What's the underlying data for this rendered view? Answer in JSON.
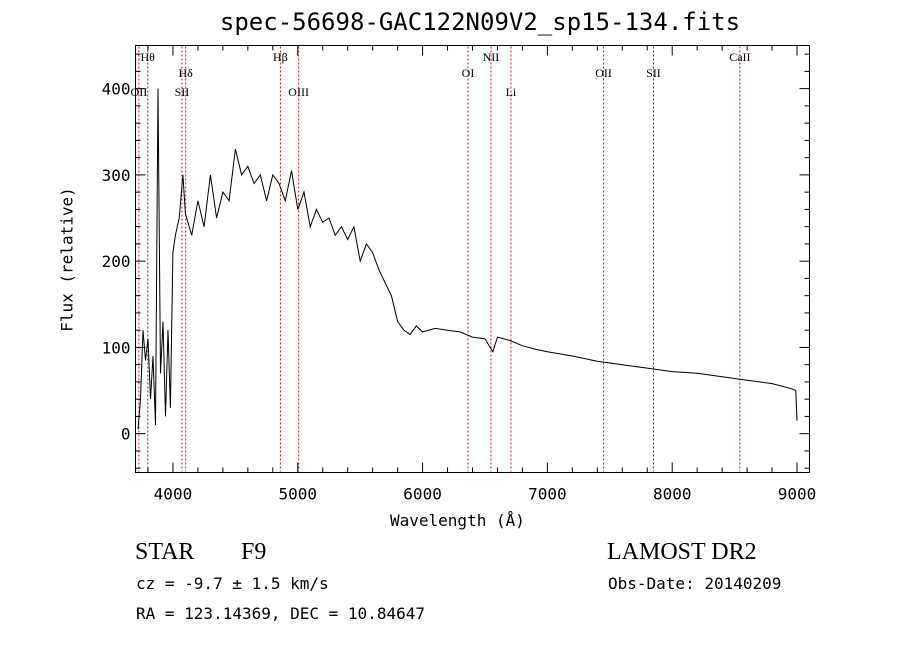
{
  "title": "spec-56698-GAC122N09V2_sp15-134.fits",
  "footer": {
    "class": "STAR",
    "subclass": "F9",
    "cz": "cz = -9.7 ± 1.5 km/s",
    "radec": "RA = 123.14369, DEC =  10.84647",
    "survey": "LAMOST DR2",
    "obsdate": "Obs-Date: 20140209"
  },
  "chart_data": {
    "type": "line",
    "title": "spec-56698-GAC122N09V2_sp15-134.fits",
    "xlabel": "Wavelength (Å)",
    "ylabel": "Flux (relative)",
    "xlim": [
      3700,
      9100
    ],
    "ylim": [
      -45,
      450
    ],
    "x_ticks": [
      4000,
      5000,
      6000,
      7000,
      8000,
      9000
    ],
    "y_ticks": [
      0,
      100,
      200,
      300,
      400
    ],
    "grid": false,
    "line_color": "#000000",
    "marker_color": "#b22222",
    "lines": [
      {
        "label": "Hθ",
        "x": 3798,
        "row": "top"
      },
      {
        "label": "OII",
        "x": 3727,
        "row": "bottom"
      },
      {
        "label": "Hδ",
        "x": 4102,
        "row": "middle"
      },
      {
        "label": "SII",
        "x": 4072,
        "row": "bottom"
      },
      {
        "label": "Hβ",
        "x": 4861,
        "row": "top"
      },
      {
        "label": "OIII",
        "x": 5007,
        "row": "bottom"
      },
      {
        "label": "OI",
        "x": 6364,
        "row": "middle"
      },
      {
        "label": "NII",
        "x": 6548,
        "row": "top"
      },
      {
        "label": "Li",
        "x": 6708,
        "row": "bottom"
      },
      {
        "label": "OII",
        "x": 7450,
        "row": "middle"
      },
      {
        "label": "SII",
        "x": 7850,
        "row": "middle"
      },
      {
        "label": "CaII",
        "x": 8542,
        "row": "top"
      }
    ],
    "series": [
      {
        "x": [
          3720,
          3740,
          3760,
          3780,
          3800,
          3820,
          3840,
          3860,
          3880,
          3900,
          3920,
          3940,
          3960,
          3980,
          4000,
          4020,
          4050,
          4080,
          4100,
          4150,
          4200,
          4250,
          4300,
          4350,
          4400,
          4450,
          4500,
          4550,
          4600,
          4650,
          4700,
          4750,
          4800,
          4850,
          4900,
          4950,
          5000,
          5050,
          5100,
          5150,
          5200,
          5250,
          5300,
          5350,
          5400,
          5450,
          5500,
          5550,
          5600,
          5650,
          5700,
          5750,
          5800,
          5850,
          5900,
          5950,
          6000,
          6100,
          6200,
          6300,
          6400,
          6500,
          6563,
          6600,
          6700,
          6800,
          6900,
          7000,
          7200,
          7400,
          7600,
          7800,
          8000,
          8200,
          8400,
          8600,
          8800,
          8960,
          8990,
          9000
        ],
        "y": [
          5,
          40,
          120,
          85,
          110,
          40,
          90,
          10,
          400,
          70,
          130,
          20,
          120,
          30,
          210,
          230,
          250,
          300,
          255,
          230,
          270,
          240,
          300,
          250,
          280,
          270,
          330,
          300,
          310,
          290,
          300,
          270,
          300,
          290,
          270,
          305,
          260,
          280,
          240,
          260,
          245,
          250,
          230,
          240,
          225,
          240,
          200,
          220,
          210,
          190,
          175,
          160,
          130,
          120,
          115,
          125,
          118,
          122,
          120,
          118,
          112,
          110,
          95,
          112,
          108,
          102,
          98,
          95,
          90,
          84,
          80,
          76,
          72,
          70,
          66,
          62,
          58,
          52,
          50,
          15
        ]
      }
    ]
  }
}
